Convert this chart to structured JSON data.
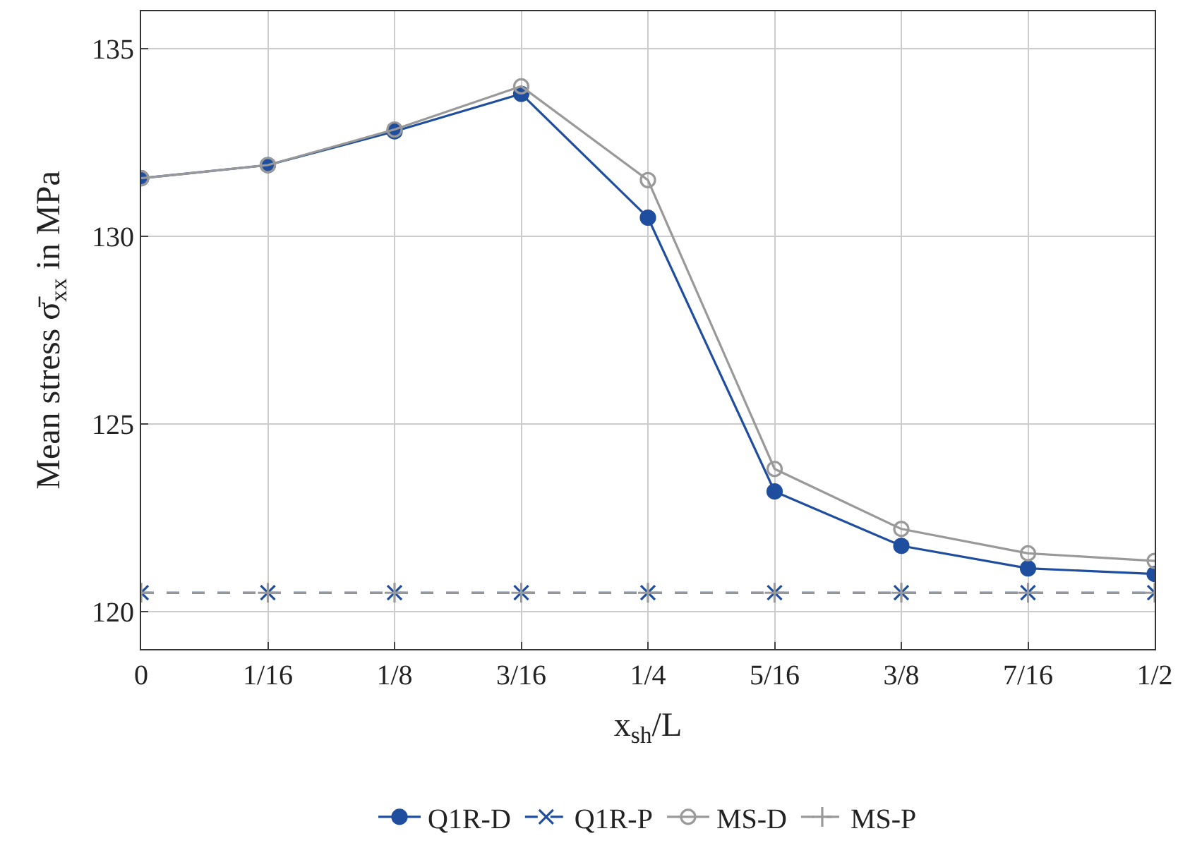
{
  "chart_data": {
    "type": "line",
    "xlabel": "x$_{sh}$/L",
    "ylabel": "Mean stress σ̄$_{xx}$ in MPa",
    "x": [
      0,
      0.0625,
      0.125,
      0.1875,
      0.25,
      0.3125,
      0.375,
      0.4375,
      0.5
    ],
    "xlim": [
      0,
      0.5
    ],
    "xticks": [
      0,
      {
        "value": 0.0625,
        "label": "1/16"
      },
      {
        "value": 0.125,
        "label": "1/8"
      },
      {
        "value": 0.1875,
        "label": "3/16"
      },
      {
        "value": 0.25,
        "label": "1/4"
      },
      {
        "value": 0.3125,
        "label": "5/16"
      },
      {
        "value": 0.375,
        "label": "3/8"
      },
      {
        "value": 0.4375,
        "label": "7/16"
      },
      {
        "value": 0.5,
        "label": "1/2"
      }
    ],
    "ylim": [
      119,
      136
    ],
    "yticks": [
      120,
      125,
      130,
      135
    ],
    "grid": true,
    "legend": "bottom",
    "series": [
      {
        "name": "Q1R-D",
        "color": "#1f4e9f",
        "marker": "circle",
        "line_style": "solid",
        "values": [
          131.55,
          131.9,
          132.8,
          133.8,
          130.5,
          123.2,
          121.75,
          121.15,
          121.0
        ]
      },
      {
        "name": "Q1R-P",
        "color": "#1f4e9f",
        "marker": "cross",
        "line_style": "dashed",
        "values": [
          120.5,
          120.5,
          120.5,
          120.5,
          120.5,
          120.5,
          120.5,
          120.5,
          120.5
        ]
      },
      {
        "name": "MS-D",
        "color": "#999999",
        "marker": "open circle",
        "line_style": "solid",
        "values": [
          131.55,
          131.9,
          132.85,
          134.0,
          131.5,
          123.8,
          122.2,
          121.55,
          121.35
        ]
      },
      {
        "name": "MS-P",
        "color": "#999999",
        "marker": "plus",
        "line_style": "dashed",
        "values": [
          120.5,
          120.5,
          120.5,
          120.5,
          120.5,
          120.5,
          120.5,
          120.5,
          120.5
        ]
      }
    ]
  }
}
